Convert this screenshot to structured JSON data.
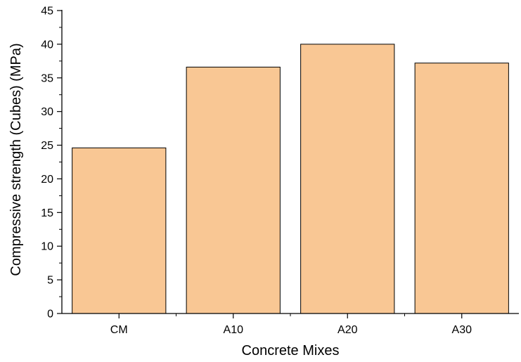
{
  "chart_data": {
    "type": "bar",
    "title": "",
    "xlabel": "Concrete Mixes",
    "ylabel": "Compressive strength (Cubes) (MPa)",
    "categories": [
      "CM",
      "A10",
      "A20",
      "A30"
    ],
    "values": [
      24.6,
      36.6,
      40.0,
      37.2
    ],
    "ylim": [
      0,
      45
    ],
    "yticks": [
      0,
      5,
      10,
      15,
      20,
      25,
      30,
      35,
      40,
      45
    ],
    "grid": false,
    "legend": "none",
    "colors": {
      "bar_fill": "#F9C794",
      "bar_stroke": "#000000",
      "axis": "#000000"
    }
  }
}
